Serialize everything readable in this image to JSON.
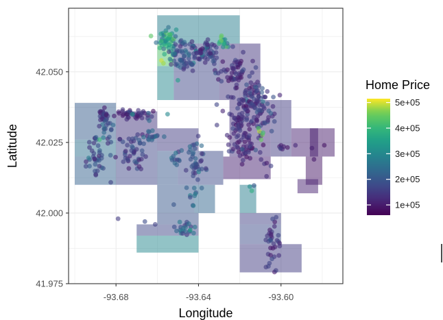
{
  "chart_data": {
    "type": "scatter",
    "xlabel": "Longitude",
    "ylabel": "Latitude",
    "xlim": [
      -93.703,
      -93.57
    ],
    "ylim": [
      41.975,
      42.0725
    ],
    "x_ticks": [
      -93.68,
      -93.64,
      -93.6
    ],
    "x_tick_labels": [
      "-93.68",
      "-93.64",
      "-93.60"
    ],
    "y_ticks": [
      41.975,
      42.0,
      42.025,
      42.05
    ],
    "y_tick_labels": [
      "41.975",
      "42.000",
      "42.025",
      "42.050"
    ],
    "grid": true,
    "legend": {
      "title": "Home Price",
      "placement": "right",
      "range": [
        60000,
        515000
      ],
      "breaks": [
        100000,
        200000,
        300000,
        400000,
        500000
      ],
      "labels": [
        "1e+05",
        "2e+05",
        "3e+05",
        "4e+05",
        "5e+05"
      ],
      "colors": [
        "#440154",
        "#3b528b",
        "#21918c",
        "#5ec962",
        "#fde725"
      ]
    },
    "tiles": [
      {
        "x0": -93.66,
        "x1": -93.62,
        "y0": 42.06,
        "y1": 42.07,
        "value": 280000
      },
      {
        "x0": -93.66,
        "x1": -93.652,
        "y0": 42.052,
        "y1": 42.06,
        "value": 430000
      },
      {
        "x0": -93.652,
        "x1": -93.63,
        "y0": 42.04,
        "y1": 42.06,
        "value": 170000
      },
      {
        "x0": -93.66,
        "x1": -93.652,
        "y0": 42.04,
        "y1": 42.052,
        "value": 300000
      },
      {
        "x0": -93.63,
        "x1": -93.61,
        "y0": 42.04,
        "y1": 42.06,
        "value": 140000
      },
      {
        "x0": -93.625,
        "x1": -93.605,
        "y0": 42.02,
        "y1": 42.04,
        "value": 130000
      },
      {
        "x0": -93.605,
        "x1": -93.595,
        "y0": 42.02,
        "y1": 42.04,
        "value": 150000
      },
      {
        "x0": -93.7,
        "x1": -93.68,
        "y0": 42.026,
        "y1": 42.039,
        "value": 210000
      },
      {
        "x0": -93.7,
        "x1": -93.68,
        "y0": 42.02,
        "y1": 42.026,
        "value": 250000
      },
      {
        "x0": -93.7,
        "x1": -93.68,
        "y0": 42.01,
        "y1": 42.02,
        "value": 220000
      },
      {
        "x0": -93.68,
        "x1": -93.66,
        "y0": 42.026,
        "y1": 42.036,
        "value": 140000
      },
      {
        "x0": -93.68,
        "x1": -93.66,
        "y0": 42.01,
        "y1": 42.026,
        "value": 170000
      },
      {
        "x0": -93.66,
        "x1": -93.64,
        "y0": 42.022,
        "y1": 42.03,
        "value": 150000
      },
      {
        "x0": -93.66,
        "x1": -93.65,
        "y0": 42.01,
        "y1": 42.022,
        "value": 200000
      },
      {
        "x0": -93.65,
        "x1": -93.628,
        "y0": 42.01,
        "y1": 42.022,
        "value": 180000
      },
      {
        "x0": -93.628,
        "x1": -93.605,
        "y0": 42.012,
        "y1": 42.02,
        "value": 110000
      },
      {
        "x0": -93.595,
        "x1": -93.582,
        "y0": 42.02,
        "y1": 42.03,
        "value": 110000
      },
      {
        "x0": -93.586,
        "x1": -93.574,
        "y0": 42.02,
        "y1": 42.03,
        "value": 100000
      },
      {
        "x0": -93.588,
        "x1": -93.58,
        "y0": 42.01,
        "y1": 42.02,
        "value": 90000
      },
      {
        "x0": -93.592,
        "x1": -93.582,
        "y0": 42.007,
        "y1": 42.012,
        "value": 110000
      },
      {
        "x0": -93.66,
        "x1": -93.642,
        "y0": 42.0,
        "y1": 42.01,
        "value": 200000
      },
      {
        "x0": -93.642,
        "x1": -93.632,
        "y0": 42.0,
        "y1": 42.01,
        "value": 230000
      },
      {
        "x0": -93.62,
        "x1": -93.612,
        "y0": 42.0,
        "y1": 42.01,
        "value": 280000
      },
      {
        "x0": -93.66,
        "x1": -93.64,
        "y0": 41.996,
        "y1": 42.0,
        "value": 190000
      },
      {
        "x0": -93.62,
        "x1": -93.6,
        "y0": 41.996,
        "y1": 42.0,
        "value": 160000
      },
      {
        "x0": -93.67,
        "x1": -93.64,
        "y0": 41.992,
        "y1": 41.996,
        "value": 170000
      },
      {
        "x0": -93.67,
        "x1": -93.64,
        "y0": 41.986,
        "y1": 41.992,
        "value": 300000
      },
      {
        "x0": -93.62,
        "x1": -93.6,
        "y0": 41.989,
        "y1": 41.996,
        "value": 180000
      },
      {
        "x0": -93.62,
        "x1": -93.59,
        "y0": 41.979,
        "y1": 41.989,
        "value": 150000
      }
    ],
    "clusters": [
      {
        "cx": -93.655,
        "cy": 42.061,
        "sx": 0.0025,
        "sy": 0.002,
        "n": 45,
        "v": 330000
      },
      {
        "cx": -93.647,
        "cy": 42.056,
        "sx": 0.0035,
        "sy": 0.0028,
        "n": 70,
        "v": 200000
      },
      {
        "cx": -93.636,
        "cy": 42.057,
        "sx": 0.003,
        "sy": 0.003,
        "n": 50,
        "v": 150000
      },
      {
        "cx": -93.628,
        "cy": 42.061,
        "sx": 0.0015,
        "sy": 0.0015,
        "n": 12,
        "v": 340000
      },
      {
        "cx": -93.622,
        "cy": 42.05,
        "sx": 0.004,
        "sy": 0.0035,
        "n": 60,
        "v": 130000
      },
      {
        "cx": -93.614,
        "cy": 42.042,
        "sx": 0.003,
        "sy": 0.0035,
        "n": 45,
        "v": 140000
      },
      {
        "cx": -93.619,
        "cy": 42.032,
        "sx": 0.0045,
        "sy": 0.006,
        "n": 90,
        "v": 130000
      },
      {
        "cx": -93.607,
        "cy": 42.036,
        "sx": 0.003,
        "sy": 0.004,
        "n": 35,
        "v": 170000
      },
      {
        "cx": -93.615,
        "cy": 42.022,
        "sx": 0.004,
        "sy": 0.003,
        "n": 30,
        "v": 120000
      },
      {
        "cx": -93.686,
        "cy": 42.035,
        "sx": 0.0015,
        "sy": 0.0012,
        "n": 25,
        "v": 150000
      },
      {
        "cx": -93.672,
        "cy": 42.035,
        "sx": 0.005,
        "sy": 0.001,
        "n": 40,
        "v": 120000
      },
      {
        "cx": -93.684,
        "cy": 42.029,
        "sx": 0.002,
        "sy": 0.002,
        "n": 18,
        "v": 200000
      },
      {
        "cx": -93.69,
        "cy": 42.02,
        "sx": 0.002,
        "sy": 0.004,
        "n": 35,
        "v": 170000
      },
      {
        "cx": -93.673,
        "cy": 42.021,
        "sx": 0.0035,
        "sy": 0.004,
        "n": 45,
        "v": 160000
      },
      {
        "cx": -93.664,
        "cy": 42.028,
        "sx": 0.003,
        "sy": 0.002,
        "n": 20,
        "v": 200000
      },
      {
        "cx": -93.642,
        "cy": 42.018,
        "sx": 0.002,
        "sy": 0.004,
        "n": 40,
        "v": 190000
      },
      {
        "cx": -93.651,
        "cy": 42.019,
        "sx": 0.0015,
        "sy": 0.0015,
        "n": 12,
        "v": 200000
      },
      {
        "cx": -93.643,
        "cy": 42.005,
        "sx": 0.0015,
        "sy": 0.002,
        "n": 8,
        "v": 220000
      },
      {
        "cx": -93.646,
        "cy": 41.995,
        "sx": 0.002,
        "sy": 0.0015,
        "n": 22,
        "v": 210000
      },
      {
        "cx": -93.604,
        "cy": 41.99,
        "sx": 0.0015,
        "sy": 0.004,
        "n": 35,
        "v": 140000
      },
      {
        "cx": -93.614,
        "cy": 42.009,
        "sx": 0.0005,
        "sy": 0.001,
        "n": 3,
        "v": 300000
      },
      {
        "cx": -93.6,
        "cy": 42.023,
        "sx": 0.002,
        "sy": 0.0005,
        "n": 6,
        "v": 110000
      },
      {
        "cx": -93.61,
        "cy": 42.028,
        "sx": 0.001,
        "sy": 0.001,
        "n": 4,
        "v": 400000
      }
    ],
    "points": [
      {
        "x": -93.658,
        "y": 42.054,
        "value": 500000
      },
      {
        "x": -93.657,
        "y": 42.053,
        "value": 480000
      },
      {
        "x": -93.654,
        "y": 42.063,
        "value": 420000
      },
      {
        "x": -93.629,
        "y": 42.061,
        "value": 460000
      },
      {
        "x": -93.63,
        "y": 42.06,
        "value": 390000
      },
      {
        "x": -93.688,
        "y": 42.026,
        "value": 410000
      },
      {
        "x": -93.611,
        "y": 42.03,
        "value": 440000
      },
      {
        "x": -93.672,
        "y": 42.035,
        "value": 330000
      },
      {
        "x": -93.65,
        "y": 42.047,
        "value": 350000
      },
      {
        "x": -93.644,
        "y": 41.994,
        "value": 360000
      },
      {
        "x": -93.585,
        "y": 42.023,
        "value": 110000
      },
      {
        "x": -93.579,
        "y": 42.024,
        "value": 90000
      },
      {
        "x": -93.584,
        "y": 42.019,
        "value": 100000
      },
      {
        "x": -93.6,
        "y": 42.024,
        "value": 110000
      },
      {
        "x": -93.593,
        "y": 42.024,
        "value": 120000
      },
      {
        "x": -93.679,
        "y": 41.998,
        "value": 150000
      },
      {
        "x": -93.666,
        "y": 41.997,
        "value": 180000
      },
      {
        "x": -93.661,
        "y": 41.996,
        "value": 160000
      },
      {
        "x": -93.652,
        "y": 42.003,
        "value": 200000
      },
      {
        "x": -93.607,
        "y": 42.013,
        "value": 130000
      },
      {
        "x": -93.655,
        "y": 42.035,
        "value": 300000
      }
    ]
  }
}
